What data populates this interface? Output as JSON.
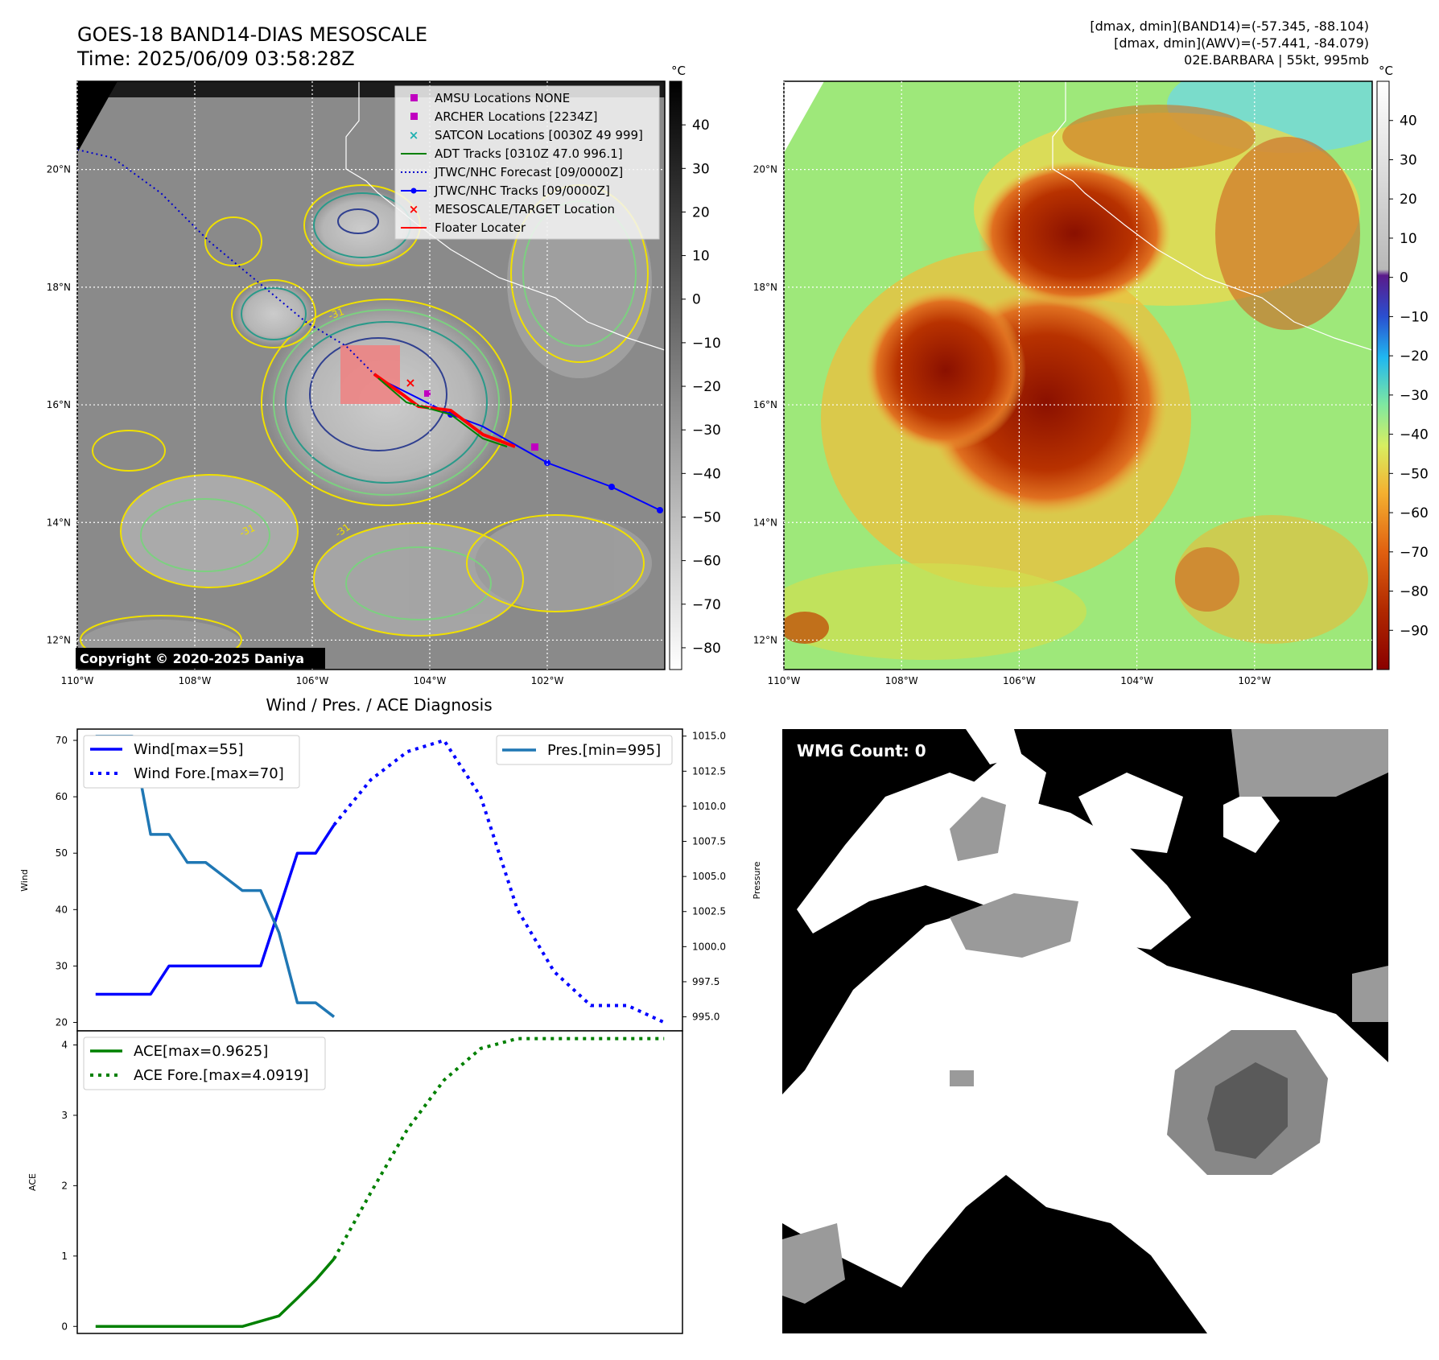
{
  "header": {
    "title_line1": "GOES-18 BAND14-DIAS MESOSCALE",
    "title_line2": "Time: 2025/06/09 03:58:28Z",
    "info_line1": "[dmax, dmin](BAND14)=(-57.345, -88.104)",
    "info_line2": "[dmax, dmin](AWV)=(-57.441, -84.079)",
    "info_line3": "02E.BARBARA | 55kt, 995mb"
  },
  "map_axes": {
    "lon_labels": [
      "110°W",
      "108°W",
      "106°W",
      "104°W",
      "102°W"
    ],
    "lon_values": [
      -110,
      -108,
      -106,
      -104,
      -102
    ],
    "lat_labels": [
      "20°N",
      "18°N",
      "16°N",
      "14°N",
      "12°N"
    ],
    "lat_values": [
      20,
      18,
      16,
      14,
      12
    ],
    "lon_range": [
      -110,
      -100
    ],
    "lat_range": [
      11.5,
      21.5
    ]
  },
  "colorbar_left": {
    "unit": "°C",
    "ticks": [
      "40",
      "30",
      "20",
      "10",
      "0",
      "−10",
      "−20",
      "−30",
      "−40",
      "−50",
      "−60",
      "−70",
      "−80"
    ],
    "range": [
      -85,
      50
    ]
  },
  "colorbar_right": {
    "unit": "°C",
    "ticks": [
      "40",
      "30",
      "20",
      "10",
      "0",
      "−10",
      "−20",
      "−30",
      "−40",
      "−50",
      "−60",
      "−70",
      "−80",
      "−90"
    ],
    "range": [
      -100,
      50
    ]
  },
  "legend": {
    "items": [
      {
        "label": "AMSU Locations NONE",
        "color": "#c000c0",
        "kind": "square"
      },
      {
        "label": "ARCHER Locations [2234Z]",
        "color": "#c000c0",
        "kind": "square"
      },
      {
        "label": "SATCON Locations [0030Z 49 999]",
        "color": "#20b0b0",
        "kind": "x"
      },
      {
        "label": "ADT Tracks [0310Z 47.0 996.1]",
        "color": "#008000",
        "kind": "line"
      },
      {
        "label": "JTWC/NHC Forecast [09/0000Z]",
        "color": "#0000cc",
        "kind": "dotted"
      },
      {
        "label": "JTWC/NHC Tracks [09/0000Z]",
        "color": "#0000ff",
        "kind": "line-dot"
      },
      {
        "label": "MESOSCALE/TARGET Location",
        "color": "#ff0000",
        "kind": "x"
      },
      {
        "label": "Floater Locater",
        "color": "#ff0000",
        "kind": "line"
      }
    ]
  },
  "contour_label": "-31",
  "copyright": "Copyright © 2020-2025 Daniya",
  "wmg_label": "WMG Count: 0",
  "colors": {
    "forecast_track": "#0000cc",
    "track": "#0000ff",
    "wind": "#0000ff",
    "pressure": "#1f77b4",
    "ace": "#008000",
    "target": "#ff0000"
  },
  "chart_data": [
    {
      "type": "line",
      "title": "Wind / Pres. / ACE Diagnosis",
      "ylabel": "Wind",
      "ylim": [
        18.5,
        72
      ],
      "yticks": [
        20,
        30,
        40,
        50,
        60,
        70
      ],
      "series": [
        {
          "name": "Wind[max=55]",
          "style": "solid",
          "x": [
            0,
            1,
            2,
            3,
            4,
            5,
            6,
            7,
            8,
            9,
            10,
            11,
            12,
            13
          ],
          "y": [
            25,
            25,
            25,
            25,
            30,
            30,
            30,
            30,
            30,
            30,
            40,
            50,
            50,
            55
          ]
        },
        {
          "name": "Wind Fore.[max=70]",
          "style": "dotted",
          "x": [
            13,
            15,
            17,
            19,
            21,
            23,
            25,
            27,
            29,
            31
          ],
          "y": [
            55,
            63,
            68,
            70,
            60,
            40,
            29,
            23,
            23,
            20
          ]
        }
      ]
    },
    {
      "type": "line",
      "ylabel": "Pressure",
      "ylim": [
        994,
        1015.5
      ],
      "yticks": [
        "995.0",
        "997.5",
        "1000.0",
        "1002.5",
        "1005.0",
        "1007.5",
        "1010.0",
        "1012.5",
        "1015.0"
      ],
      "series": [
        {
          "name": "Pres.[min=995]",
          "style": "solid",
          "x": [
            0,
            1,
            2,
            3,
            4,
            5,
            6,
            7,
            8,
            9,
            10,
            11,
            12,
            13
          ],
          "y": [
            1015,
            1015,
            1015,
            1008,
            1008,
            1006,
            1006,
            1005,
            1004,
            1004,
            1001,
            996,
            996,
            995
          ]
        }
      ]
    },
    {
      "type": "line",
      "ylabel": "ACE",
      "ylim": [
        -0.1,
        4.2
      ],
      "yticks": [
        0,
        1,
        2,
        3,
        4
      ],
      "series": [
        {
          "name": "ACE[max=0.9625]",
          "style": "solid",
          "x": [
            0,
            2,
            4,
            6,
            8,
            10,
            11,
            12,
            13
          ],
          "y": [
            0,
            0,
            0,
            0,
            0,
            0.15,
            0.4,
            0.66,
            0.96
          ]
        },
        {
          "name": "ACE Fore.[max=4.0919]",
          "style": "dotted",
          "x": [
            13,
            15,
            17,
            19,
            21,
            23,
            25,
            27,
            29,
            31
          ],
          "y": [
            0.96,
            1.9,
            2.8,
            3.5,
            3.95,
            4.09,
            4.09,
            4.09,
            4.09,
            4.09
          ]
        }
      ]
    }
  ]
}
